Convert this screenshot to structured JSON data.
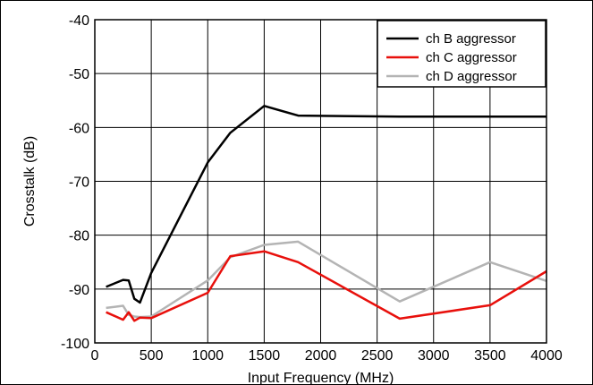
{
  "chart_data": {
    "type": "line",
    "title": "",
    "xlabel": "Input Frequency (MHz)",
    "ylabel": "Crosstalk (dB)",
    "xlim": [
      0,
      4000
    ],
    "ylim": [
      -100,
      -40
    ],
    "xticks": [
      0,
      500,
      1000,
      1500,
      2000,
      2500,
      3000,
      3500,
      4000
    ],
    "yticks": [
      -40,
      -50,
      -60,
      -70,
      -80,
      -90,
      -100
    ],
    "grid": true,
    "legend_position": "top-right",
    "series": [
      {
        "name": "ch B aggressor",
        "color": "#000000",
        "points": [
          [
            100,
            -89.6
          ],
          [
            250,
            -88.3
          ],
          [
            300,
            -88.4
          ],
          [
            350,
            -91.8
          ],
          [
            400,
            -92.5
          ],
          [
            500,
            -87.0
          ],
          [
            1000,
            -66.5
          ],
          [
            1200,
            -61.0
          ],
          [
            1500,
            -56.0
          ],
          [
            1800,
            -57.8
          ],
          [
            2700,
            -58.0
          ],
          [
            3500,
            -58.0
          ],
          [
            4000,
            -58.0
          ]
        ]
      },
      {
        "name": "ch C aggressor",
        "color": "#e8100c",
        "points": [
          [
            100,
            -94.3
          ],
          [
            250,
            -95.7
          ],
          [
            300,
            -94.3
          ],
          [
            350,
            -95.9
          ],
          [
            400,
            -95.3
          ],
          [
            500,
            -95.4
          ],
          [
            1000,
            -90.7
          ],
          [
            1200,
            -83.9
          ],
          [
            1500,
            -83.0
          ],
          [
            1800,
            -85.0
          ],
          [
            2700,
            -95.5
          ],
          [
            3500,
            -93.0
          ],
          [
            4000,
            -86.7
          ]
        ]
      },
      {
        "name": "ch D aggressor",
        "color": "#b4b4b4",
        "points": [
          [
            100,
            -93.5
          ],
          [
            250,
            -93.1
          ],
          [
            300,
            -94.8
          ],
          [
            350,
            -95.1
          ],
          [
            400,
            -95.2
          ],
          [
            500,
            -95.1
          ],
          [
            1000,
            -88.4
          ],
          [
            1200,
            -84.1
          ],
          [
            1500,
            -81.8
          ],
          [
            1800,
            -81.2
          ],
          [
            2700,
            -92.3
          ],
          [
            3500,
            -85.0
          ],
          [
            4000,
            -88.5
          ]
        ]
      }
    ]
  }
}
